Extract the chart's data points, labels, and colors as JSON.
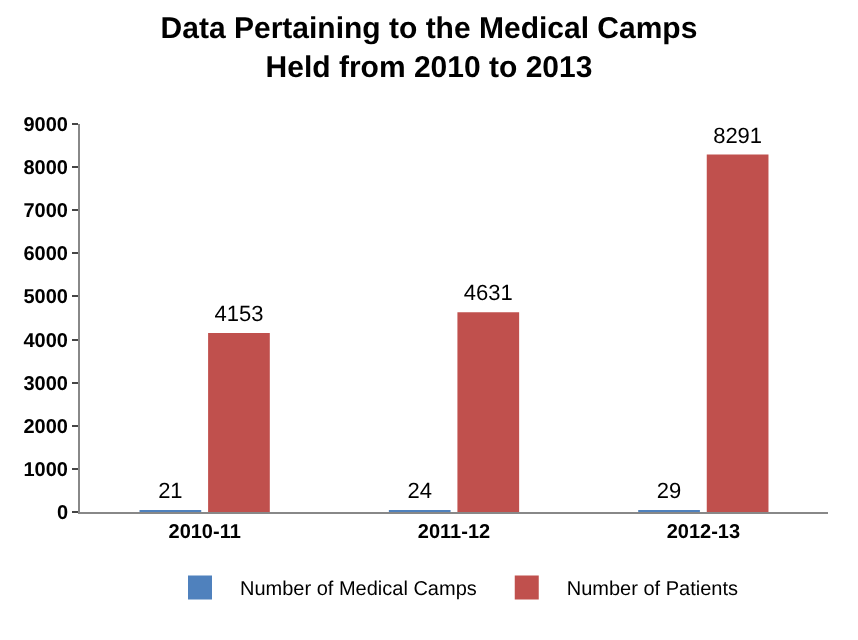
{
  "chart_data": {
    "type": "bar",
    "title": "Data Pertaining to the Medical Camps\nHeld from 2010 to 2013",
    "categories": [
      "2010-11",
      "2011-12",
      "2012-13"
    ],
    "series": [
      {
        "name": "Number of Medical Camps",
        "color": "#4f81bd",
        "values": [
          21,
          24,
          29
        ]
      },
      {
        "name": "Number of Patients",
        "color": "#c0504d",
        "values": [
          4153,
          4631,
          8291
        ]
      }
    ],
    "ylim": [
      0,
      9000
    ],
    "yticks": [
      0,
      1000,
      2000,
      3000,
      4000,
      5000,
      6000,
      7000,
      8000,
      9000
    ],
    "grid": false,
    "legend": "bottom",
    "data_labels": true
  }
}
